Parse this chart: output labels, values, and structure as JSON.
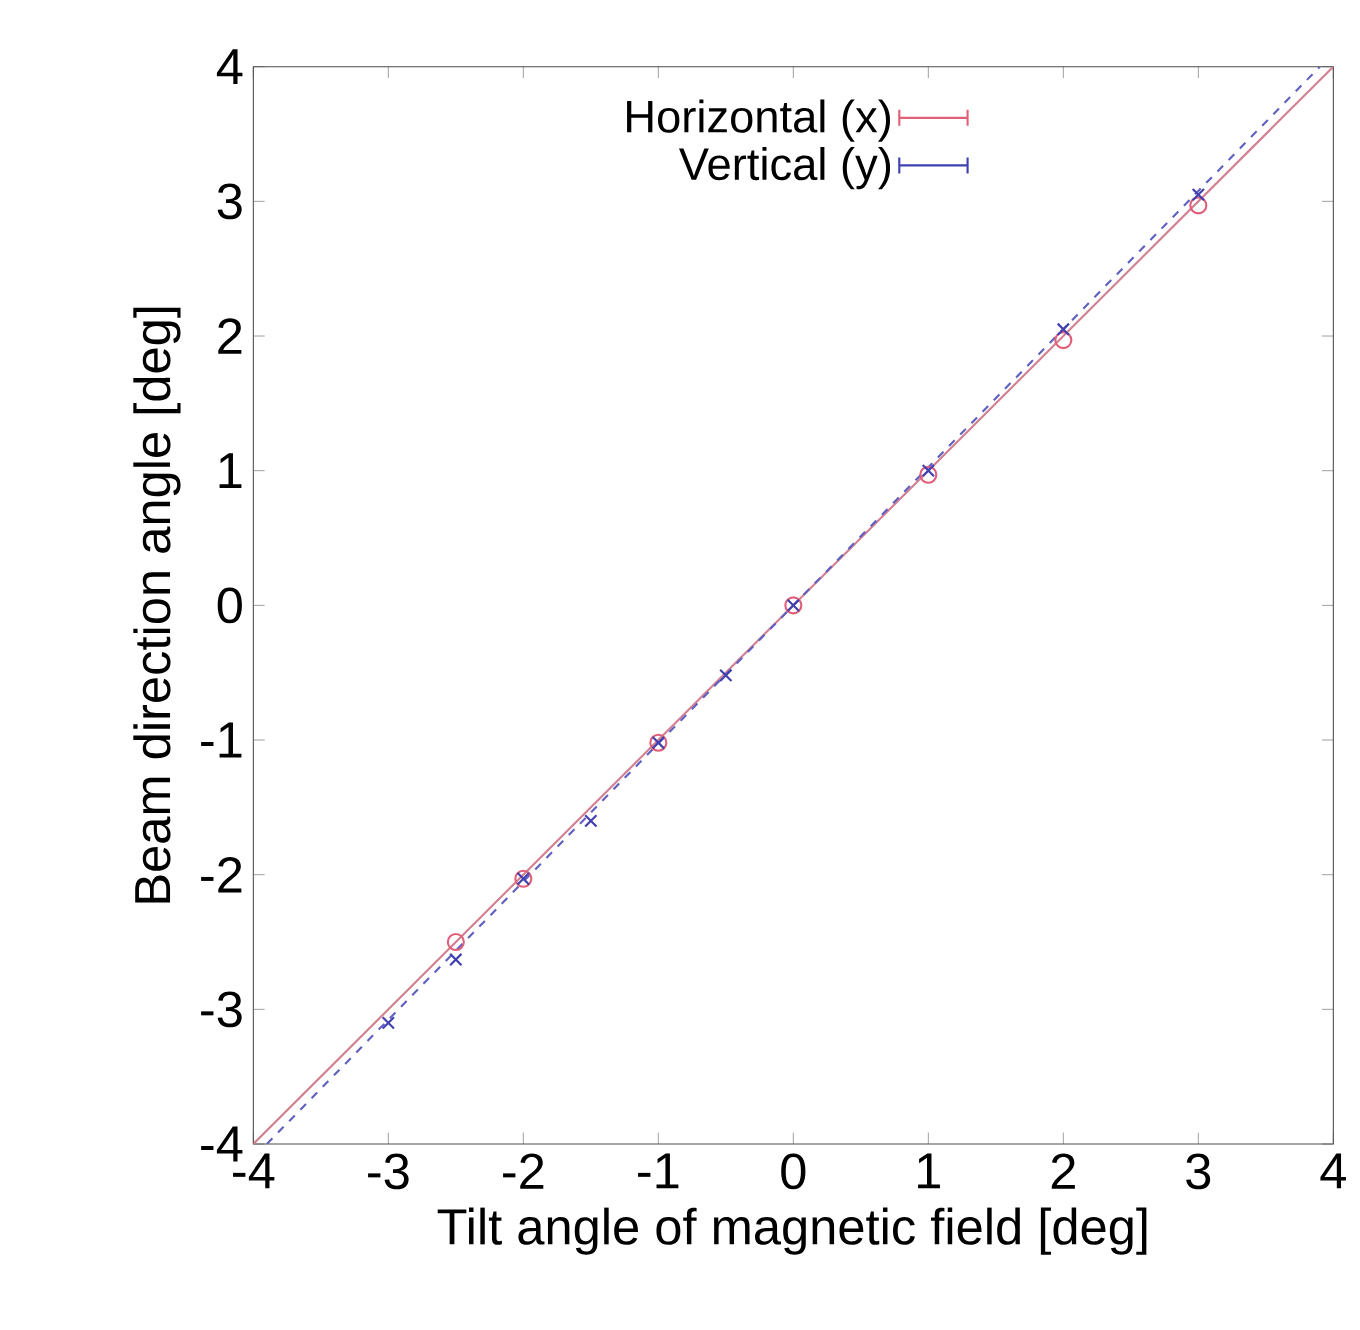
{
  "chart_data": {
    "type": "scatter",
    "xlabel": "Tilt angle of magnetic field [deg]",
    "ylabel": "Beam direction angle [deg]",
    "xlim": [
      -4,
      4
    ],
    "ylim": [
      -4,
      4
    ],
    "xticks": [
      -4,
      -3,
      -2,
      -1,
      0,
      1,
      2,
      3,
      4
    ],
    "yticks": [
      -4,
      -3,
      -2,
      -1,
      0,
      1,
      2,
      3,
      4
    ],
    "grid": false,
    "legend": "top",
    "series": [
      {
        "name": "Horizontal (x)",
        "color": "#e0607a",
        "marker": "circle",
        "x": [
          -2.5,
          -2,
          -1,
          0,
          1,
          2,
          3
        ],
        "values": [
          -2.5,
          -2.03,
          -1.02,
          0,
          0.97,
          1.97,
          2.97
        ]
      },
      {
        "name": "Vertical (y)",
        "color": "#4040b0",
        "marker": "cross",
        "x": [
          -3,
          -2.5,
          -2,
          -1.5,
          -1,
          -0.5,
          0,
          1,
          2,
          3
        ],
        "values": [
          -3.1,
          -2.63,
          -2.03,
          -1.6,
          -1.02,
          -0.52,
          0,
          1,
          2.05,
          3.05
        ]
      },
      {
        "type": "line",
        "color": "#d08090",
        "line_style": "solid",
        "x": [
          -4,
          4
        ],
        "values": [
          -4,
          4
        ]
      },
      {
        "type": "line",
        "color": "#6060c0",
        "line_style": "dashed",
        "x": [
          -3.9,
          3.9
        ],
        "values": [
          -4,
          4
        ]
      }
    ]
  }
}
